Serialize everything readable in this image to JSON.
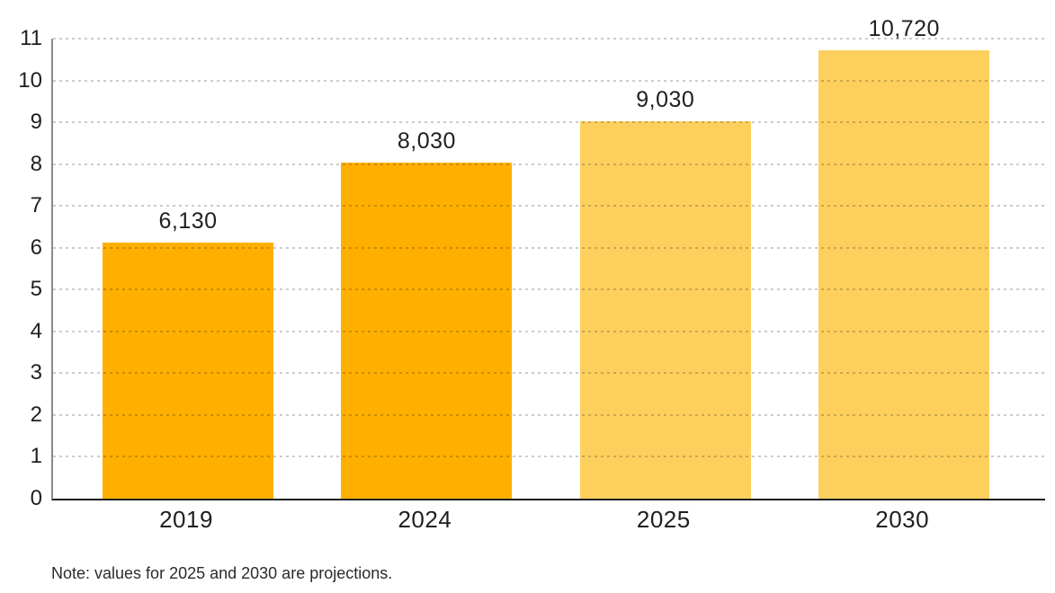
{
  "chart_data": {
    "type": "bar",
    "title": "",
    "xlabel": "",
    "ylabel": "",
    "categories": [
      "2019",
      "2024",
      "2025",
      "2030"
    ],
    "values": [
      6130,
      8030,
      9030,
      10720
    ],
    "value_labels": [
      "6,130",
      "8,030",
      "9,030",
      "10,720"
    ],
    "axis_scale_divisor": 1000,
    "ylim": [
      0,
      11
    ],
    "yticks": [
      0,
      1,
      2,
      3,
      4,
      5,
      6,
      7,
      8,
      9,
      10,
      11
    ],
    "grid": "horizontal-dotted",
    "legend": "none",
    "bar_colors": [
      "#FFAF00",
      "#FFAF00",
      "#FDD05E",
      "#FDD05E"
    ],
    "note": "Note: values for 2025 and 2030 are projections."
  },
  "colors": {
    "bar_actual": "#FFAF00",
    "bar_projection": "#FDD05E",
    "gridline": "#CCCCCC",
    "y_axis_line": "#8A8A8A",
    "x_axis_line": "#1C1C1C",
    "text": "#1F1F1F",
    "background": "#FFFFFF"
  }
}
